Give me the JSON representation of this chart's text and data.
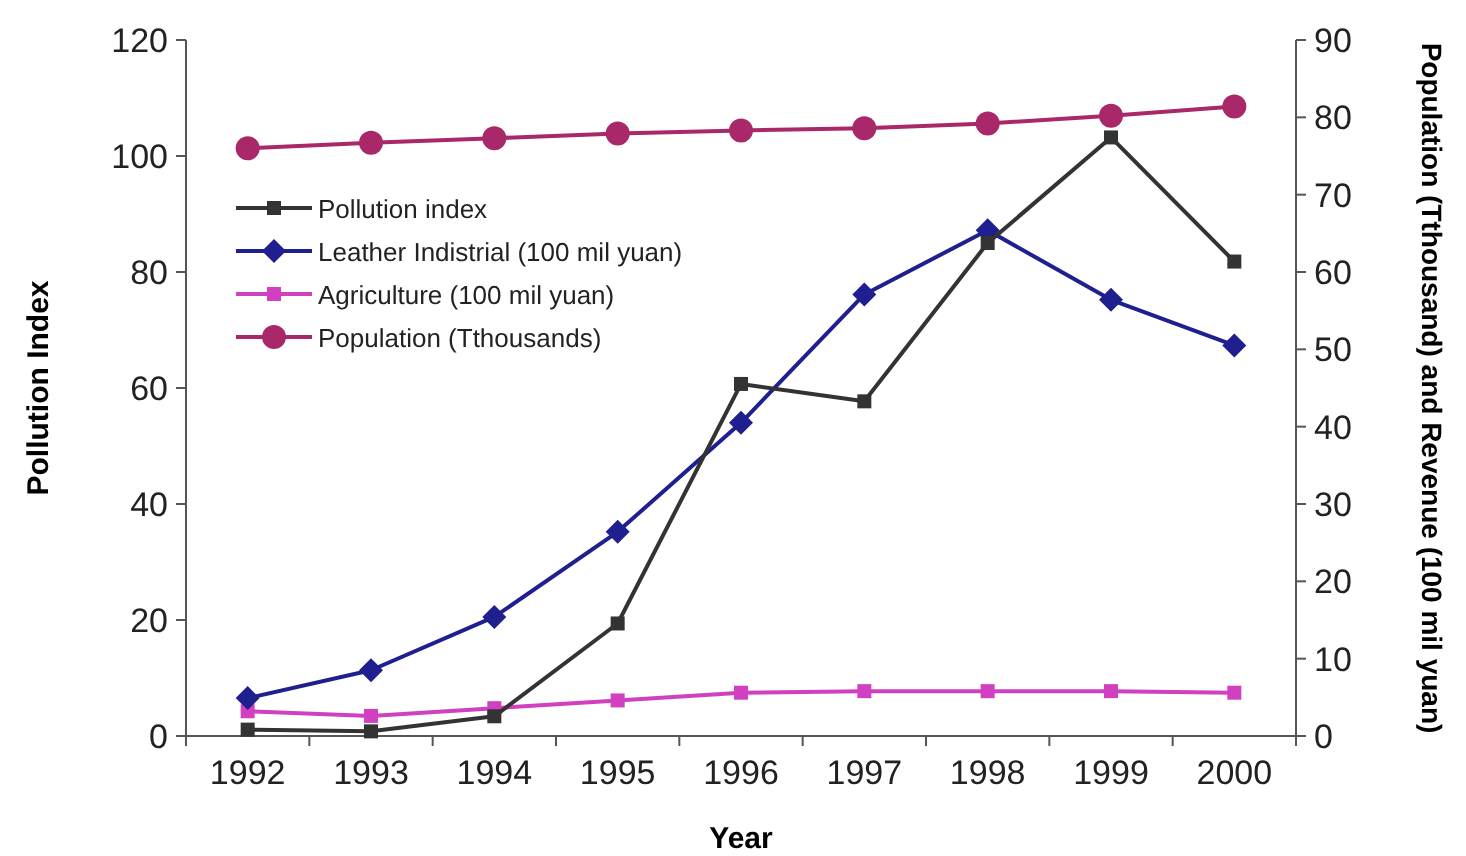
{
  "chart_data": {
    "type": "line",
    "xlabel": "Year",
    "ylabel": "Pollution Index",
    "y2label": "Population (Tthousand) and Revenue (100 mil yuan)",
    "categories": [
      "1992",
      "1993",
      "1994",
      "1995",
      "1996",
      "1997",
      "1998",
      "1999",
      "2000"
    ],
    "series": [
      {
        "name": "Pollution index",
        "color": "#333333",
        "marker": "square",
        "values": [
          1.1,
          0.8,
          3.4,
          19.4,
          60.7,
          57.7,
          85,
          103.2,
          81.8
        ]
      },
      {
        "name": "Leather Indistrial (100 mil yuan)",
        "color": "#1f1f8f",
        "marker": "diamond",
        "axis": "y2",
        "values": [
          4.9,
          8.5,
          15.4,
          26.4,
          40.5,
          57.1,
          65.4,
          56.4,
          50.5
        ]
      },
      {
        "name": "Agriculture (100 mil yuan)",
        "color": "#d040c0",
        "marker": "square",
        "axis": "y2",
        "values": [
          3.2,
          2.6,
          3.6,
          4.6,
          5.6,
          5.8,
          5.8,
          5.8,
          5.6
        ]
      },
      {
        "name": "Population (Tthousands)",
        "color": "#a8286a",
        "marker": "circle",
        "axis": "y2",
        "values": [
          76.0,
          76.7,
          77.3,
          77.9,
          78.3,
          78.6,
          79.2,
          80.2,
          81.4
        ]
      }
    ],
    "ylim": [
      0,
      120
    ],
    "yticks": [
      0,
      20,
      40,
      60,
      80,
      100,
      120
    ],
    "y2lim": [
      0,
      90
    ],
    "y2ticks": [
      0,
      10,
      20,
      30,
      40,
      50,
      60,
      70,
      80,
      90
    ],
    "legend": "top left",
    "grid": false
  }
}
